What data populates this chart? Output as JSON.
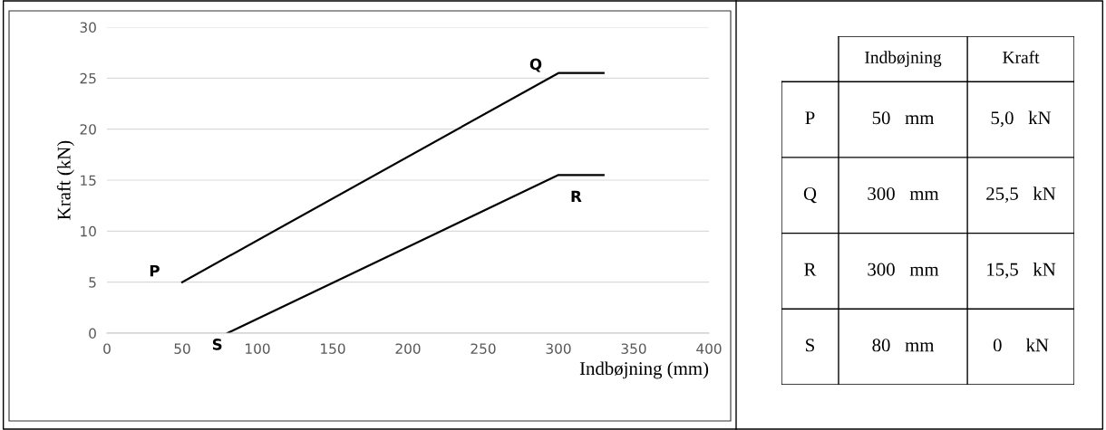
{
  "chart_data": [
    {
      "type": "line",
      "xlabel": "Indbøjning (mm)",
      "ylabel": "Kraft (kN)",
      "series": [
        {
          "color": "#000000",
          "x": [
            50,
            300,
            330
          ],
          "values": [
            5,
            25.5,
            25.5
          ]
        },
        {
          "color": "#000000",
          "x": [
            80,
            300,
            330
          ],
          "values": [
            0,
            15.5,
            15.5
          ]
        }
      ],
      "xlim": [
        0,
        400
      ],
      "xticks": [
        0,
        50,
        100,
        150,
        200,
        250,
        300,
        350,
        400
      ],
      "ylim": [
        0,
        30
      ],
      "yticks": [
        0,
        5,
        10,
        15,
        20,
        25,
        30
      ],
      "grid": "y",
      "annotations": [
        {
          "text": "P",
          "x": 50,
          "y": 5
        },
        {
          "text": "Q",
          "x": 300,
          "y": 25.5
        },
        {
          "text": "R",
          "x": 300,
          "y": 15.5
        },
        {
          "text": "S",
          "x": 80,
          "y": 0
        }
      ]
    },
    {
      "type": "other",
      "categories": [
        "Indbøjning",
        "Kraft"
      ],
      "y_categories": [
        "P",
        "Q",
        "R",
        "S"
      ],
      "cell_labels": [
        [
          "50   mm",
          "5,0   kN"
        ],
        [
          "300   mm",
          "25,5   kN"
        ],
        [
          "300   mm",
          "15,5   kN"
        ],
        [
          "80   mm",
          "0     kN"
        ]
      ]
    }
  ]
}
